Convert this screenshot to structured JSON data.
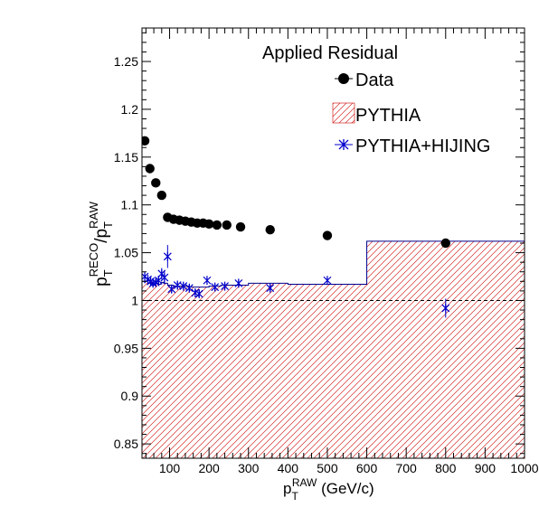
{
  "chart_data": {
    "type": "scatter",
    "title": "Applied Residual",
    "xlabel": {
      "base": "p",
      "sub": "T",
      "sup": "RAW",
      "unit": " (GeV/c)"
    },
    "ylabel": {
      "num_base": "p",
      "num_sub": "T",
      "num_sup": "RECO",
      "slash": "/",
      "den_base": "p",
      "den_sub": "T",
      "den_sup": "RAW"
    },
    "xlim": [
      30,
      1000
    ],
    "ylim": [
      0.835,
      1.285
    ],
    "x_ticks": [
      100,
      200,
      300,
      400,
      500,
      600,
      700,
      800,
      900,
      1000
    ],
    "x_tick_labels": [
      "100",
      "200",
      "300",
      "400",
      "500",
      "600",
      "700",
      "800",
      "900",
      "1000"
    ],
    "y_ticks": [
      0.85,
      0.9,
      0.95,
      1.0,
      1.05,
      1.1,
      1.15,
      1.2,
      1.25
    ],
    "y_tick_labels": [
      "0.85",
      "0.9",
      "0.95",
      "1",
      "1.05",
      "1.1",
      "1.15",
      "1.2",
      "1.25"
    ],
    "reference_line": 1.0,
    "legend_position": "top-right",
    "series": [
      {
        "name": "Data",
        "kind": "marker",
        "color": "#000000",
        "x": [
          37,
          50,
          65,
          80,
          95,
          110,
          125,
          140,
          155,
          170,
          185,
          200,
          220,
          245,
          280,
          355,
          500,
          800
        ],
        "y": [
          1.167,
          1.138,
          1.123,
          1.11,
          1.087,
          1.085,
          1.084,
          1.083,
          1.082,
          1.081,
          1.081,
          1.08,
          1.079,
          1.079,
          1.077,
          1.074,
          1.068,
          1.06
        ]
      },
      {
        "name": "PYTHIA",
        "kind": "hatched-histogram",
        "color": "#cc0000",
        "line_color": "#00008b",
        "edges": [
          30,
          45,
          55,
          62,
          70,
          78,
          85,
          95,
          110,
          130,
          150,
          175,
          200,
          230,
          260,
          300,
          400,
          600,
          1000
        ],
        "values": [
          1.02,
          1.018,
          1.016,
          1.018,
          1.017,
          1.019,
          1.018,
          1.016,
          1.015,
          1.015,
          1.014,
          1.014,
          1.015,
          1.016,
          1.016,
          1.018,
          1.017,
          1.062
        ]
      },
      {
        "name": "PYTHIA+HIJING",
        "kind": "marker-errorbar",
        "color": "#0000cc",
        "x": [
          37,
          45,
          52,
          58,
          65,
          72,
          80,
          87,
          95,
          105,
          120,
          135,
          150,
          165,
          175,
          195,
          215,
          240,
          275,
          355,
          500,
          800
        ],
        "y": [
          1.025,
          1.022,
          1.02,
          1.018,
          1.019,
          1.021,
          1.028,
          1.024,
          1.046,
          1.012,
          1.016,
          1.015,
          1.013,
          1.008,
          1.007,
          1.021,
          1.014,
          1.015,
          1.018,
          1.013,
          1.021,
          0.992
        ],
        "err": [
          0.004,
          0.004,
          0.004,
          0.004,
          0.004,
          0.005,
          0.006,
          0.007,
          0.012,
          0.004,
          0.004,
          0.004,
          0.004,
          0.004,
          0.004,
          0.004,
          0.004,
          0.004,
          0.004,
          0.004,
          0.004,
          0.01
        ]
      }
    ]
  }
}
